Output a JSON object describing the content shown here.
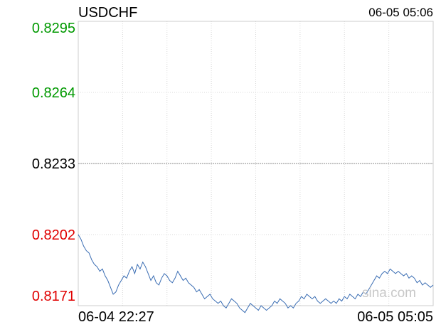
{
  "header": {
    "symbol": "USDCHF",
    "timestamp": "06-05 05:06"
  },
  "watermark": "sina.com",
  "colors": {
    "line": "#3a6db3",
    "up": "#009900",
    "down": "#e00000",
    "neutral": "#000000",
    "grid": "#d8d8d8",
    "border": "#cccccc"
  },
  "chart_data": {
    "type": "line",
    "title": "USDCHF",
    "ylim": [
      0.8171,
      0.8295
    ],
    "reference": 0.8233,
    "grid": true,
    "y_ticks": [
      {
        "value": 0.8295,
        "label": "0.8295",
        "tone": "up"
      },
      {
        "value": 0.8264,
        "label": "0.8264",
        "tone": "up"
      },
      {
        "value": 0.8233,
        "label": "0.8233",
        "tone": "neutral"
      },
      {
        "value": 0.8202,
        "label": "0.8202",
        "tone": "down"
      },
      {
        "value": 0.8171,
        "label": "0.8171",
        "tone": "down"
      }
    ],
    "x_ticks": [
      {
        "label": "06-04 22:27",
        "position": "start"
      },
      {
        "label": "06-05 05:05",
        "position": "end"
      }
    ],
    "x_range": [
      "06-04 22:27",
      "06-05 05:05"
    ],
    "series": [
      {
        "values": [
          0.8202,
          0.82,
          0.8197,
          0.8195,
          0.8194,
          0.8191,
          0.8189,
          0.8188,
          0.8186,
          0.8187,
          0.8184,
          0.8182,
          0.8179,
          0.8176,
          0.8177,
          0.818,
          0.8182,
          0.8184,
          0.8183,
          0.8186,
          0.8188,
          0.8185,
          0.8189,
          0.8187,
          0.819,
          0.8188,
          0.8185,
          0.8182,
          0.8184,
          0.8181,
          0.818,
          0.8183,
          0.8185,
          0.8184,
          0.8182,
          0.8181,
          0.8183,
          0.8186,
          0.8184,
          0.8182,
          0.8183,
          0.8181,
          0.818,
          0.8179,
          0.8177,
          0.8178,
          0.8176,
          0.8174,
          0.8175,
          0.8176,
          0.8174,
          0.8173,
          0.8172,
          0.8173,
          0.8171,
          0.817,
          0.8172,
          0.8174,
          0.8173,
          0.8172,
          0.817,
          0.8169,
          0.8168,
          0.817,
          0.8172,
          0.8171,
          0.817,
          0.8169,
          0.8171,
          0.817,
          0.8169,
          0.817,
          0.8171,
          0.8173,
          0.8172,
          0.8174,
          0.8173,
          0.8172,
          0.817,
          0.8171,
          0.817,
          0.8172,
          0.8173,
          0.8175,
          0.8174,
          0.8176,
          0.8175,
          0.8174,
          0.8175,
          0.8173,
          0.8172,
          0.8173,
          0.8174,
          0.8173,
          0.8172,
          0.8173,
          0.8172,
          0.8174,
          0.8173,
          0.8175,
          0.8174,
          0.8176,
          0.8175,
          0.8174,
          0.8176,
          0.8175,
          0.8177,
          0.8176,
          0.8178,
          0.818,
          0.8182,
          0.8184,
          0.8183,
          0.8185,
          0.8186,
          0.8185,
          0.8187,
          0.8186,
          0.8185,
          0.8186,
          0.8185,
          0.8184,
          0.8185,
          0.8183,
          0.8184,
          0.8183,
          0.8181,
          0.8182,
          0.818,
          0.8181,
          0.818,
          0.8179,
          0.818
        ]
      }
    ]
  }
}
